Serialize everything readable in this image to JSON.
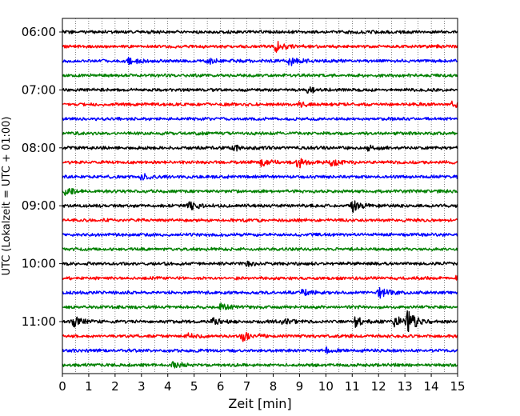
{
  "chart_data": {
    "type": "line",
    "subtype": "helicorder",
    "xlabel": "Zeit  [min]",
    "ylabel": "UTC (Lokalzeit = UTC + 01:00)",
    "xlim": [
      0,
      15
    ],
    "x_ticks": [
      "0",
      "1",
      "2",
      "3",
      "4",
      "5",
      "6",
      "7",
      "8",
      "9",
      "10",
      "11",
      "12",
      "13",
      "14",
      "15"
    ],
    "y_tick_labels": [
      "06:00",
      "07:00",
      "08:00",
      "09:00",
      "10:00",
      "11:00"
    ],
    "y_tick_rows": [
      0,
      4,
      8,
      12,
      16,
      20
    ],
    "row_interval_min": 15,
    "row_count": 24,
    "vertical_grid": "dotted, every 0.5 min",
    "trace_colors": [
      "#000000",
      "#ff0000",
      "#0000ff",
      "#008000"
    ],
    "events": [
      {
        "row": 1,
        "t": 8.1,
        "amp": 7
      },
      {
        "row": 2,
        "t": 2.5,
        "amp": 5
      },
      {
        "row": 2,
        "t": 5.5,
        "amp": 3
      },
      {
        "row": 2,
        "t": 8.6,
        "amp": 6
      },
      {
        "row": 4,
        "t": 9.3,
        "amp": 3
      },
      {
        "row": 5,
        "t": 9.0,
        "amp": 3
      },
      {
        "row": 5,
        "t": 14.8,
        "amp": 4
      },
      {
        "row": 8,
        "t": 6.5,
        "amp": 3
      },
      {
        "row": 8,
        "t": 11.6,
        "amp": 3
      },
      {
        "row": 9,
        "t": 8.9,
        "amp": 8
      },
      {
        "row": 9,
        "t": 7.5,
        "amp": 5
      },
      {
        "row": 9,
        "t": 10.2,
        "amp": 4
      },
      {
        "row": 10,
        "t": 3.0,
        "amp": 4
      },
      {
        "row": 11,
        "t": 0.1,
        "amp": 4
      },
      {
        "row": 12,
        "t": 4.8,
        "amp": 6
      },
      {
        "row": 12,
        "t": 11.0,
        "amp": 8
      },
      {
        "row": 16,
        "t": 7.0,
        "amp": 3
      },
      {
        "row": 17,
        "t": 14.9,
        "amp": 4
      },
      {
        "row": 18,
        "t": 9.1,
        "amp": 4
      },
      {
        "row": 18,
        "t": 12.0,
        "amp": 7
      },
      {
        "row": 19,
        "t": 6.0,
        "amp": 4
      },
      {
        "row": 20,
        "t": 0.4,
        "amp": 7
      },
      {
        "row": 20,
        "t": 5.7,
        "amp": 4
      },
      {
        "row": 20,
        "t": 8.3,
        "amp": 4
      },
      {
        "row": 20,
        "t": 11.1,
        "amp": 6
      },
      {
        "row": 20,
        "t": 12.6,
        "amp": 7
      },
      {
        "row": 20,
        "t": 13.1,
        "amp": 13
      },
      {
        "row": 21,
        "t": 6.8,
        "amp": 8
      },
      {
        "row": 21,
        "t": 4.7,
        "amp": 3
      },
      {
        "row": 22,
        "t": 10.0,
        "amp": 3
      },
      {
        "row": 23,
        "t": 4.2,
        "amp": 4
      }
    ]
  }
}
